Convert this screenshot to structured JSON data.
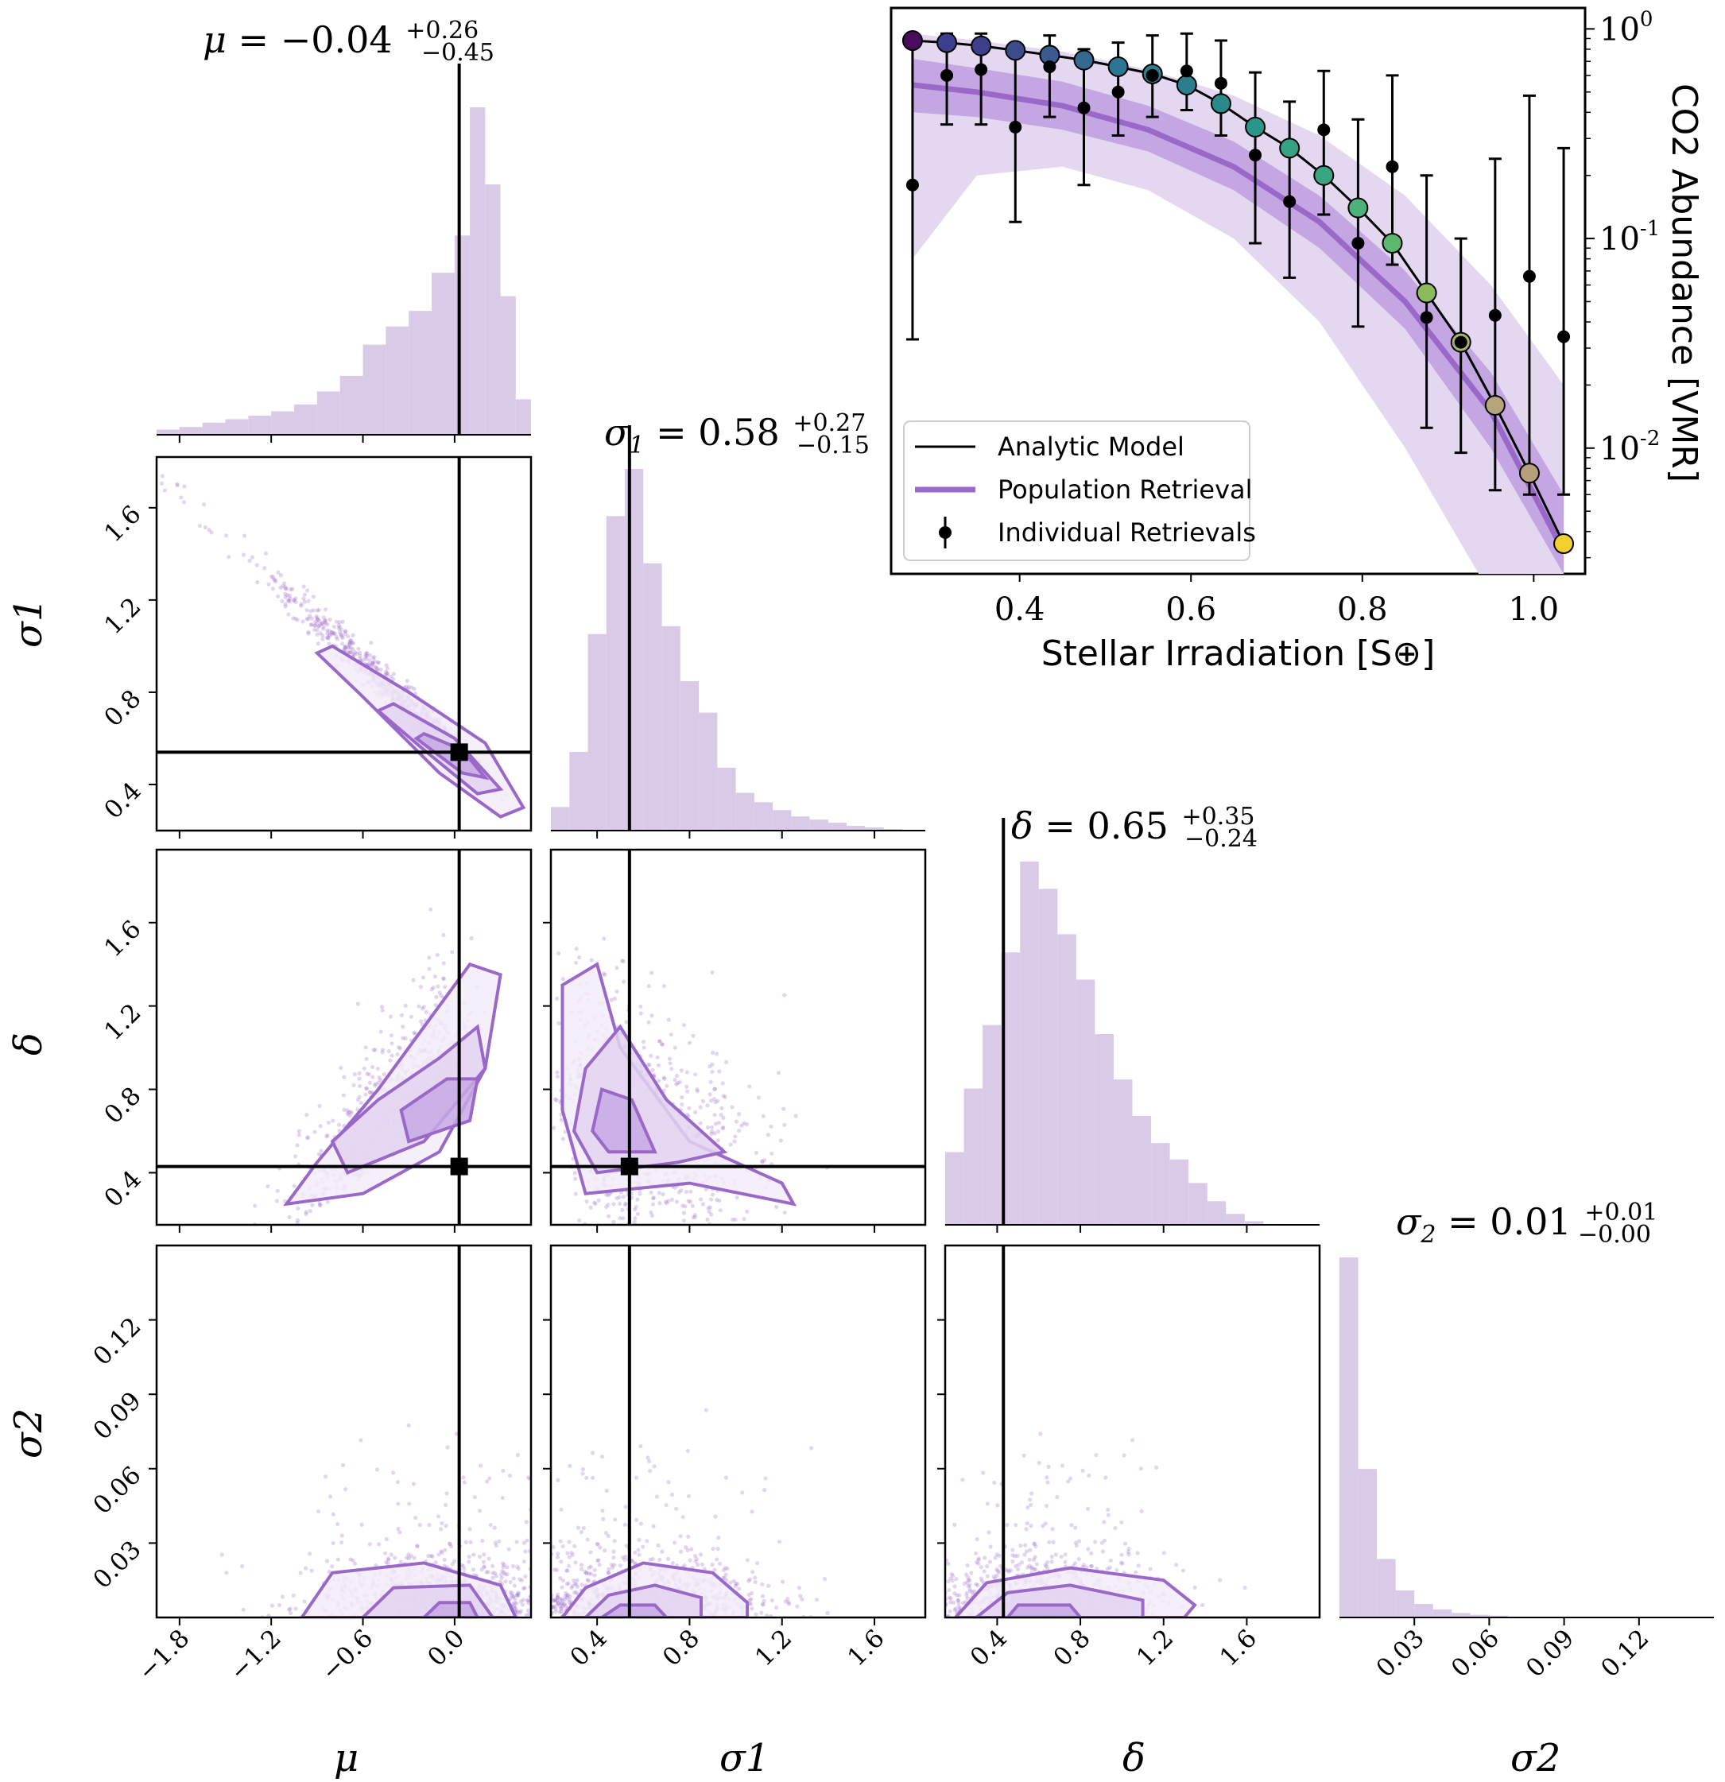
{
  "colors": {
    "purple": "#9a68c8",
    "purple_light": "#d9cbe7",
    "purple_band_outer": "#e4d8f0",
    "purple_band_inner": "#c4a7e2",
    "black": "#000000"
  },
  "corner": {
    "truth": {
      "mu": 0.03,
      "sigma1": 0.54,
      "delta": 0.43
    },
    "titles": {
      "mu": {
        "symbol": "μ",
        "sub": "",
        "median": "−0.04",
        "plus": "+0.26",
        "minus": "−0.45"
      },
      "sigma1": {
        "symbol": "σ",
        "sub": "1",
        "median": "0.58",
        "plus": "+0.27",
        "minus": "−0.15"
      },
      "delta": {
        "symbol": "δ",
        "sub": "",
        "median": "0.65",
        "plus": "+0.35",
        "minus": "−0.24"
      },
      "sigma2": {
        "symbol": "σ",
        "sub": "2",
        "median": "0.01",
        "plus": "+0.01",
        "minus": "−0.00"
      }
    },
    "axis_labels": {
      "mu": "μ",
      "sigma1": "σ1",
      "delta": "δ",
      "sigma2": "σ2"
    },
    "ticks": {
      "mu": [
        "−1.8",
        "−1.2",
        "−0.6",
        "0.0"
      ],
      "sigma1": [
        "0.4",
        "0.8",
        "1.2",
        "1.6"
      ],
      "delta": [
        "0.4",
        "0.8",
        "1.2",
        "1.6"
      ],
      "sigma2": [
        "0.03",
        "0.06",
        "0.09",
        "0.12"
      ]
    }
  },
  "chart_data": [
    {
      "type": "bar",
      "title": "μ = −0.04 +0.26 −0.45",
      "xlabel": "μ",
      "xlim": [
        -1.95,
        0.5
      ],
      "bin_edges": [
        -1.95,
        -1.8,
        -1.65,
        -1.5,
        -1.35,
        -1.2,
        -1.05,
        -0.9,
        -0.75,
        -0.6,
        -0.45,
        -0.3,
        -0.15,
        0.0,
        0.1,
        0.2,
        0.3,
        0.4,
        0.5
      ],
      "values": [
        0.6,
        0.9,
        1.4,
        1.8,
        2.2,
        2.7,
        3.5,
        5.0,
        6.8,
        10.4,
        12.5,
        14.3,
        18.7,
        23.0,
        37.8,
        28.9,
        16.0,
        4.1
      ],
      "truth": 0.03
    },
    {
      "type": "bar",
      "title": "σ1 = 0.58 +0.27 −0.15",
      "xlabel": "σ1",
      "xlim": [
        0.2,
        1.8
      ],
      "bin_edges": [
        0.2,
        0.28,
        0.36,
        0.44,
        0.52,
        0.6,
        0.68,
        0.76,
        0.84,
        0.92,
        1.0,
        1.08,
        1.16,
        1.24,
        1.32,
        1.4,
        1.48,
        1.56,
        1.64,
        1.72,
        1.8
      ],
      "values": [
        1.5,
        5.0,
        12.5,
        20.0,
        23.0,
        17.0,
        13.0,
        9.5,
        7.5,
        4.0,
        2.4,
        1.8,
        1.3,
        0.9,
        0.7,
        0.5,
        0.3,
        0.2,
        0.1,
        0.05
      ],
      "truth": 0.54
    },
    {
      "type": "bar",
      "title": "δ = 0.65 +0.35 −0.24",
      "xlabel": "δ",
      "xlim": [
        0.15,
        1.95
      ],
      "bin_edges": [
        0.15,
        0.24,
        0.33,
        0.42,
        0.51,
        0.6,
        0.69,
        0.78,
        0.87,
        0.96,
        1.05,
        1.14,
        1.23,
        1.32,
        1.41,
        1.5,
        1.59,
        1.68,
        1.77,
        1.86,
        1.95
      ],
      "values": [
        4.0,
        7.5,
        11.0,
        15.0,
        20.0,
        18.5,
        16.0,
        13.5,
        10.5,
        8.0,
        6.0,
        4.5,
        3.6,
        2.3,
        1.3,
        0.6,
        0.2,
        0.05,
        0.0,
        0.0
      ],
      "truth": 0.43
    },
    {
      "type": "bar",
      "title": "σ2 = 0.01 +0.01 −0.00",
      "xlabel": "σ2",
      "xlim": [
        0.0,
        0.15
      ],
      "bin_edges": [
        0.0,
        0.0075,
        0.015,
        0.0225,
        0.03,
        0.0375,
        0.045,
        0.0525,
        0.06,
        0.0675,
        0.075,
        0.0825,
        0.09,
        0.0975,
        0.105,
        0.1125,
        0.12,
        0.1275,
        0.135,
        0.1425,
        0.15
      ],
      "values": [
        40.0,
        16.5,
        6.5,
        3.0,
        1.5,
        0.9,
        0.5,
        0.3,
        0.2,
        0.1,
        0.08,
        0.05,
        0.05,
        0.03,
        0.02,
        0.02,
        0.01,
        0.01,
        0.01,
        0.0
      ],
      "truth": null
    },
    {
      "type": "scatter",
      "x": "μ",
      "y": "σ1",
      "xlim": [
        -1.95,
        0.5
      ],
      "ylim": [
        0.2,
        1.82
      ],
      "ellipse_centers": [
        [
          0.0,
          0.53
        ]
      ],
      "contour_note": "1/2/3-sigma contours, strongly anti-correlated",
      "truth": [
        0.03,
        0.54
      ]
    },
    {
      "type": "scatter",
      "x": "μ",
      "y": "δ",
      "xlim": [
        -1.95,
        0.5
      ],
      "ylim": [
        0.15,
        1.95
      ],
      "truth": [
        0.03,
        0.43
      ]
    },
    {
      "type": "scatter",
      "x": "σ1",
      "y": "δ",
      "xlim": [
        0.2,
        1.8
      ],
      "ylim": [
        0.15,
        1.95
      ],
      "truth": [
        0.54,
        0.43
      ]
    },
    {
      "type": "scatter",
      "x": "μ",
      "y": "σ2",
      "xlim": [
        -1.95,
        0.5
      ],
      "ylim": [
        0.0,
        0.15
      ],
      "truth_x": 0.03
    },
    {
      "type": "scatter",
      "x": "σ1",
      "y": "σ2",
      "xlim": [
        0.2,
        1.8
      ],
      "ylim": [
        0.0,
        0.15
      ],
      "truth_x": 0.54
    },
    {
      "type": "scatter",
      "x": "δ",
      "y": "σ2",
      "xlim": [
        0.15,
        1.95
      ],
      "ylim": [
        0.0,
        0.15
      ],
      "truth_x": 0.43
    },
    {
      "type": "line",
      "title": "",
      "xlabel": "Stellar Irradiation [S⊕]",
      "ylabel": "CO2 Abundance [VMR]",
      "xlim": [
        0.25,
        1.06
      ],
      "ylim_log10": [
        -2.6,
        0.1
      ],
      "xticks": [
        "0.4",
        "0.6",
        "0.8",
        "1.0"
      ],
      "yticks": [
        "10^0",
        "10^-1",
        "10^-2"
      ],
      "analytic_model": {
        "x": [
          0.275,
          0.315,
          0.355,
          0.395,
          0.435,
          0.475,
          0.515,
          0.555,
          0.595,
          0.635,
          0.675,
          0.715,
          0.755,
          0.795,
          0.835,
          0.875,
          0.915,
          0.955,
          0.995,
          1.035
        ],
        "y": [
          0.88,
          0.86,
          0.83,
          0.79,
          0.75,
          0.71,
          0.66,
          0.61,
          0.54,
          0.44,
          0.34,
          0.27,
          0.2,
          0.14,
          0.095,
          0.055,
          0.032,
          0.016,
          0.0076,
          0.0035
        ]
      },
      "population_retrieval": {
        "x": [
          0.275,
          0.35,
          0.45,
          0.55,
          0.65,
          0.75,
          0.85,
          0.95,
          1.035
        ],
        "median": [
          0.54,
          0.5,
          0.43,
          0.33,
          0.22,
          0.12,
          0.05,
          0.015,
          0.0032
        ],
        "inner_lo": [
          0.4,
          0.38,
          0.33,
          0.26,
          0.17,
          0.09,
          0.037,
          0.01,
          0.0025
        ],
        "inner_hi": [
          0.72,
          0.65,
          0.56,
          0.43,
          0.29,
          0.16,
          0.07,
          0.023,
          0.006
        ],
        "outer_lo": [
          0.08,
          0.2,
          0.22,
          0.17,
          0.1,
          0.04,
          0.01,
          0.002,
          0.0003
        ],
        "outer_hi": [
          0.95,
          0.88,
          0.78,
          0.64,
          0.48,
          0.31,
          0.16,
          0.06,
          0.02
        ]
      },
      "individual_retrievals": {
        "x": [
          0.275,
          0.315,
          0.355,
          0.395,
          0.435,
          0.475,
          0.515,
          0.555,
          0.595,
          0.635,
          0.675,
          0.715,
          0.755,
          0.795,
          0.835,
          0.875,
          0.915,
          0.955,
          0.995,
          1.035
        ],
        "y": [
          0.18,
          0.6,
          0.64,
          0.34,
          0.66,
          0.42,
          0.5,
          0.6,
          0.63,
          0.55,
          0.25,
          0.15,
          0.33,
          0.095,
          0.22,
          0.042,
          0.032,
          0.043,
          0.066,
          0.034
        ],
        "err_lo": [
          0.033,
          0.35,
          0.35,
          0.12,
          0.38,
          0.18,
          0.31,
          0.38,
          0.41,
          0.31,
          0.095,
          0.065,
          0.13,
          0.038,
          0.075,
          0.0125,
          0.0095,
          0.0063,
          0.006,
          0.006
        ],
        "err_hi": [
          0.9,
          0.95,
          0.95,
          0.8,
          0.93,
          0.8,
          0.86,
          0.93,
          0.95,
          0.88,
          0.62,
          0.45,
          0.63,
          0.37,
          0.6,
          0.2,
          0.1,
          0.24,
          0.48,
          0.27
        ]
      },
      "legend": [
        "Analytic Model",
        "Population Retrieval",
        "Individual Retrievals"
      ]
    }
  ]
}
